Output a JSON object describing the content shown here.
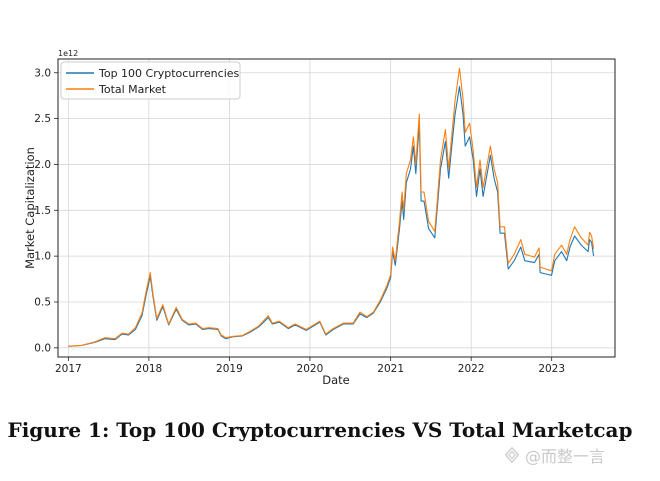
{
  "caption": "Figure 1: Top 100 Cryptocurrencies VS Total Marketcap",
  "watermark": {
    "text": "@而整一言"
  },
  "colors": {
    "top100": "#1f77b4",
    "total": "#ff7f0e",
    "grid": "#d6d6d6",
    "axis": "#222222"
  },
  "chart_data": {
    "type": "line",
    "title": "",
    "xlabel": "Date",
    "ylabel": "Market Capitalization",
    "y_scale_label": "1e12",
    "xlim": [
      "2016-11-15",
      "2023-10-15"
    ],
    "ylim": [
      -0.1,
      3.15
    ],
    "x_ticks": [
      {
        "value": "2017-01-01",
        "label": "2017"
      },
      {
        "value": "2018-01-01",
        "label": "2018"
      },
      {
        "value": "2019-01-01",
        "label": "2019"
      },
      {
        "value": "2020-01-01",
        "label": "2020"
      },
      {
        "value": "2021-01-01",
        "label": "2021"
      },
      {
        "value": "2022-01-01",
        "label": "2022"
      },
      {
        "value": "2023-01-01",
        "label": "2023"
      }
    ],
    "y_ticks": [
      {
        "value": 0.0,
        "label": "0.0"
      },
      {
        "value": 0.5,
        "label": "0.5"
      },
      {
        "value": 1.0,
        "label": "1.0"
      },
      {
        "value": 1.5,
        "label": "1.5"
      },
      {
        "value": 2.0,
        "label": "2.0"
      },
      {
        "value": 2.5,
        "label": "2.5"
      },
      {
        "value": 3.0,
        "label": "3.0"
      }
    ],
    "grid": true,
    "legend_position": "top-left",
    "series": [
      {
        "name": "Top 100 Cryptocurrencies",
        "color": "#1f77b4",
        "points": [
          [
            "2017-01-01",
            0.017
          ],
          [
            "2017-03-01",
            0.025
          ],
          [
            "2017-05-01",
            0.06
          ],
          [
            "2017-06-15",
            0.1
          ],
          [
            "2017-08-01",
            0.09
          ],
          [
            "2017-09-01",
            0.15
          ],
          [
            "2017-10-01",
            0.14
          ],
          [
            "2017-11-01",
            0.2
          ],
          [
            "2017-12-01",
            0.35
          ],
          [
            "2017-12-20",
            0.58
          ],
          [
            "2018-01-07",
            0.78
          ],
          [
            "2018-01-20",
            0.55
          ],
          [
            "2018-02-06",
            0.3
          ],
          [
            "2018-03-05",
            0.45
          ],
          [
            "2018-04-01",
            0.25
          ],
          [
            "2018-05-05",
            0.42
          ],
          [
            "2018-06-01",
            0.3
          ],
          [
            "2018-07-01",
            0.25
          ],
          [
            "2018-08-01",
            0.26
          ],
          [
            "2018-09-01",
            0.2
          ],
          [
            "2018-10-01",
            0.21
          ],
          [
            "2018-11-10",
            0.2
          ],
          [
            "2018-11-25",
            0.13
          ],
          [
            "2018-12-15",
            0.1
          ],
          [
            "2019-01-15",
            0.12
          ],
          [
            "2019-03-01",
            0.13
          ],
          [
            "2019-04-05",
            0.17
          ],
          [
            "2019-05-15",
            0.23
          ],
          [
            "2019-06-26",
            0.33
          ],
          [
            "2019-07-15",
            0.26
          ],
          [
            "2019-08-15",
            0.28
          ],
          [
            "2019-09-25",
            0.21
          ],
          [
            "2019-10-26",
            0.25
          ],
          [
            "2019-12-15",
            0.19
          ],
          [
            "2020-02-15",
            0.28
          ],
          [
            "2020-03-13",
            0.14
          ],
          [
            "2020-04-15",
            0.2
          ],
          [
            "2020-06-01",
            0.26
          ],
          [
            "2020-07-15",
            0.26
          ],
          [
            "2020-08-15",
            0.37
          ],
          [
            "2020-09-15",
            0.33
          ],
          [
            "2020-10-15",
            0.38
          ],
          [
            "2020-11-15",
            0.5
          ],
          [
            "2020-12-15",
            0.65
          ],
          [
            "2021-01-01",
            0.77
          ],
          [
            "2021-01-10",
            1.05
          ],
          [
            "2021-01-22",
            0.9
          ],
          [
            "2021-02-10",
            1.3
          ],
          [
            "2021-02-22",
            1.6
          ],
          [
            "2021-03-01",
            1.4
          ],
          [
            "2021-03-13",
            1.8
          ],
          [
            "2021-04-01",
            1.95
          ],
          [
            "2021-04-14",
            2.2
          ],
          [
            "2021-04-25",
            1.9
          ],
          [
            "2021-05-11",
            2.45
          ],
          [
            "2021-05-19",
            1.6
          ],
          [
            "2021-06-01",
            1.6
          ],
          [
            "2021-06-22",
            1.3
          ],
          [
            "2021-07-20",
            1.2
          ],
          [
            "2021-08-15",
            1.95
          ],
          [
            "2021-09-06",
            2.25
          ],
          [
            "2021-09-21",
            1.85
          ],
          [
            "2021-10-05",
            2.2
          ],
          [
            "2021-10-20",
            2.55
          ],
          [
            "2021-11-09",
            2.85
          ],
          [
            "2021-11-25",
            2.55
          ],
          [
            "2021-12-05",
            2.2
          ],
          [
            "2021-12-25",
            2.3
          ],
          [
            "2022-01-10",
            2.05
          ],
          [
            "2022-01-25",
            1.65
          ],
          [
            "2022-02-10",
            1.95
          ],
          [
            "2022-02-24",
            1.65
          ],
          [
            "2022-03-29",
            2.1
          ],
          [
            "2022-04-15",
            1.85
          ],
          [
            "2022-05-01",
            1.7
          ],
          [
            "2022-05-12",
            1.25
          ],
          [
            "2022-06-01",
            1.25
          ],
          [
            "2022-06-18",
            0.86
          ],
          [
            "2022-07-15",
            0.95
          ],
          [
            "2022-08-14",
            1.1
          ],
          [
            "2022-09-01",
            0.95
          ],
          [
            "2022-10-15",
            0.93
          ],
          [
            "2022-11-05",
            1.02
          ],
          [
            "2022-11-10",
            0.82
          ],
          [
            "2022-12-31",
            0.79
          ],
          [
            "2023-01-15",
            0.95
          ],
          [
            "2023-02-15",
            1.05
          ],
          [
            "2023-03-10",
            0.95
          ],
          [
            "2023-03-25",
            1.1
          ],
          [
            "2023-04-15",
            1.22
          ],
          [
            "2023-05-15",
            1.12
          ],
          [
            "2023-06-15",
            1.05
          ],
          [
            "2023-06-22",
            1.18
          ],
          [
            "2023-07-01",
            1.15
          ],
          [
            "2023-07-10",
            1.0
          ]
        ]
      },
      {
        "name": "Total Market",
        "color": "#ff7f0e",
        "points": [
          [
            "2017-01-01",
            0.018
          ],
          [
            "2017-03-01",
            0.026
          ],
          [
            "2017-05-01",
            0.065
          ],
          [
            "2017-06-15",
            0.11
          ],
          [
            "2017-08-01",
            0.1
          ],
          [
            "2017-09-01",
            0.16
          ],
          [
            "2017-10-01",
            0.15
          ],
          [
            "2017-11-01",
            0.22
          ],
          [
            "2017-12-01",
            0.38
          ],
          [
            "2017-12-20",
            0.62
          ],
          [
            "2018-01-07",
            0.82
          ],
          [
            "2018-01-20",
            0.58
          ],
          [
            "2018-02-06",
            0.32
          ],
          [
            "2018-03-05",
            0.47
          ],
          [
            "2018-04-01",
            0.26
          ],
          [
            "2018-05-05",
            0.44
          ],
          [
            "2018-06-01",
            0.31
          ],
          [
            "2018-07-01",
            0.26
          ],
          [
            "2018-08-01",
            0.27
          ],
          [
            "2018-09-01",
            0.21
          ],
          [
            "2018-10-01",
            0.22
          ],
          [
            "2018-11-10",
            0.21
          ],
          [
            "2018-11-25",
            0.14
          ],
          [
            "2018-12-15",
            0.11
          ],
          [
            "2019-01-15",
            0.125
          ],
          [
            "2019-03-01",
            0.135
          ],
          [
            "2019-04-05",
            0.18
          ],
          [
            "2019-05-15",
            0.24
          ],
          [
            "2019-06-26",
            0.35
          ],
          [
            "2019-07-15",
            0.27
          ],
          [
            "2019-08-15",
            0.29
          ],
          [
            "2019-09-25",
            0.22
          ],
          [
            "2019-10-26",
            0.26
          ],
          [
            "2019-12-15",
            0.2
          ],
          [
            "2020-02-15",
            0.29
          ],
          [
            "2020-03-13",
            0.15
          ],
          [
            "2020-04-15",
            0.21
          ],
          [
            "2020-06-01",
            0.27
          ],
          [
            "2020-07-15",
            0.27
          ],
          [
            "2020-08-15",
            0.39
          ],
          [
            "2020-09-15",
            0.34
          ],
          [
            "2020-10-15",
            0.39
          ],
          [
            "2020-11-15",
            0.52
          ],
          [
            "2020-12-15",
            0.68
          ],
          [
            "2021-01-01",
            0.8
          ],
          [
            "2021-01-10",
            1.1
          ],
          [
            "2021-01-22",
            0.95
          ],
          [
            "2021-02-10",
            1.38
          ],
          [
            "2021-02-22",
            1.7
          ],
          [
            "2021-03-01",
            1.5
          ],
          [
            "2021-03-13",
            1.9
          ],
          [
            "2021-04-01",
            2.05
          ],
          [
            "2021-04-14",
            2.3
          ],
          [
            "2021-04-25",
            2.0
          ],
          [
            "2021-05-11",
            2.55
          ],
          [
            "2021-05-19",
            1.7
          ],
          [
            "2021-06-01",
            1.7
          ],
          [
            "2021-06-22",
            1.38
          ],
          [
            "2021-07-20",
            1.27
          ],
          [
            "2021-08-15",
            2.05
          ],
          [
            "2021-09-06",
            2.38
          ],
          [
            "2021-09-21",
            1.95
          ],
          [
            "2021-10-05",
            2.32
          ],
          [
            "2021-10-20",
            2.7
          ],
          [
            "2021-11-09",
            3.05
          ],
          [
            "2021-11-25",
            2.72
          ],
          [
            "2021-12-05",
            2.35
          ],
          [
            "2021-12-25",
            2.45
          ],
          [
            "2022-01-10",
            2.15
          ],
          [
            "2022-01-25",
            1.75
          ],
          [
            "2022-02-10",
            2.05
          ],
          [
            "2022-02-24",
            1.75
          ],
          [
            "2022-03-29",
            2.2
          ],
          [
            "2022-04-15",
            1.95
          ],
          [
            "2022-05-01",
            1.8
          ],
          [
            "2022-05-12",
            1.32
          ],
          [
            "2022-06-01",
            1.32
          ],
          [
            "2022-06-18",
            0.92
          ],
          [
            "2022-07-15",
            1.02
          ],
          [
            "2022-08-14",
            1.18
          ],
          [
            "2022-09-01",
            1.02
          ],
          [
            "2022-10-15",
            0.99
          ],
          [
            "2022-11-05",
            1.09
          ],
          [
            "2022-11-10",
            0.88
          ],
          [
            "2022-12-31",
            0.84
          ],
          [
            "2023-01-15",
            1.02
          ],
          [
            "2023-02-15",
            1.12
          ],
          [
            "2023-03-10",
            1.02
          ],
          [
            "2023-03-25",
            1.18
          ],
          [
            "2023-04-15",
            1.32
          ],
          [
            "2023-05-15",
            1.2
          ],
          [
            "2023-06-15",
            1.12
          ],
          [
            "2023-06-22",
            1.26
          ],
          [
            "2023-07-01",
            1.22
          ],
          [
            "2023-07-10",
            1.08
          ]
        ]
      }
    ]
  }
}
